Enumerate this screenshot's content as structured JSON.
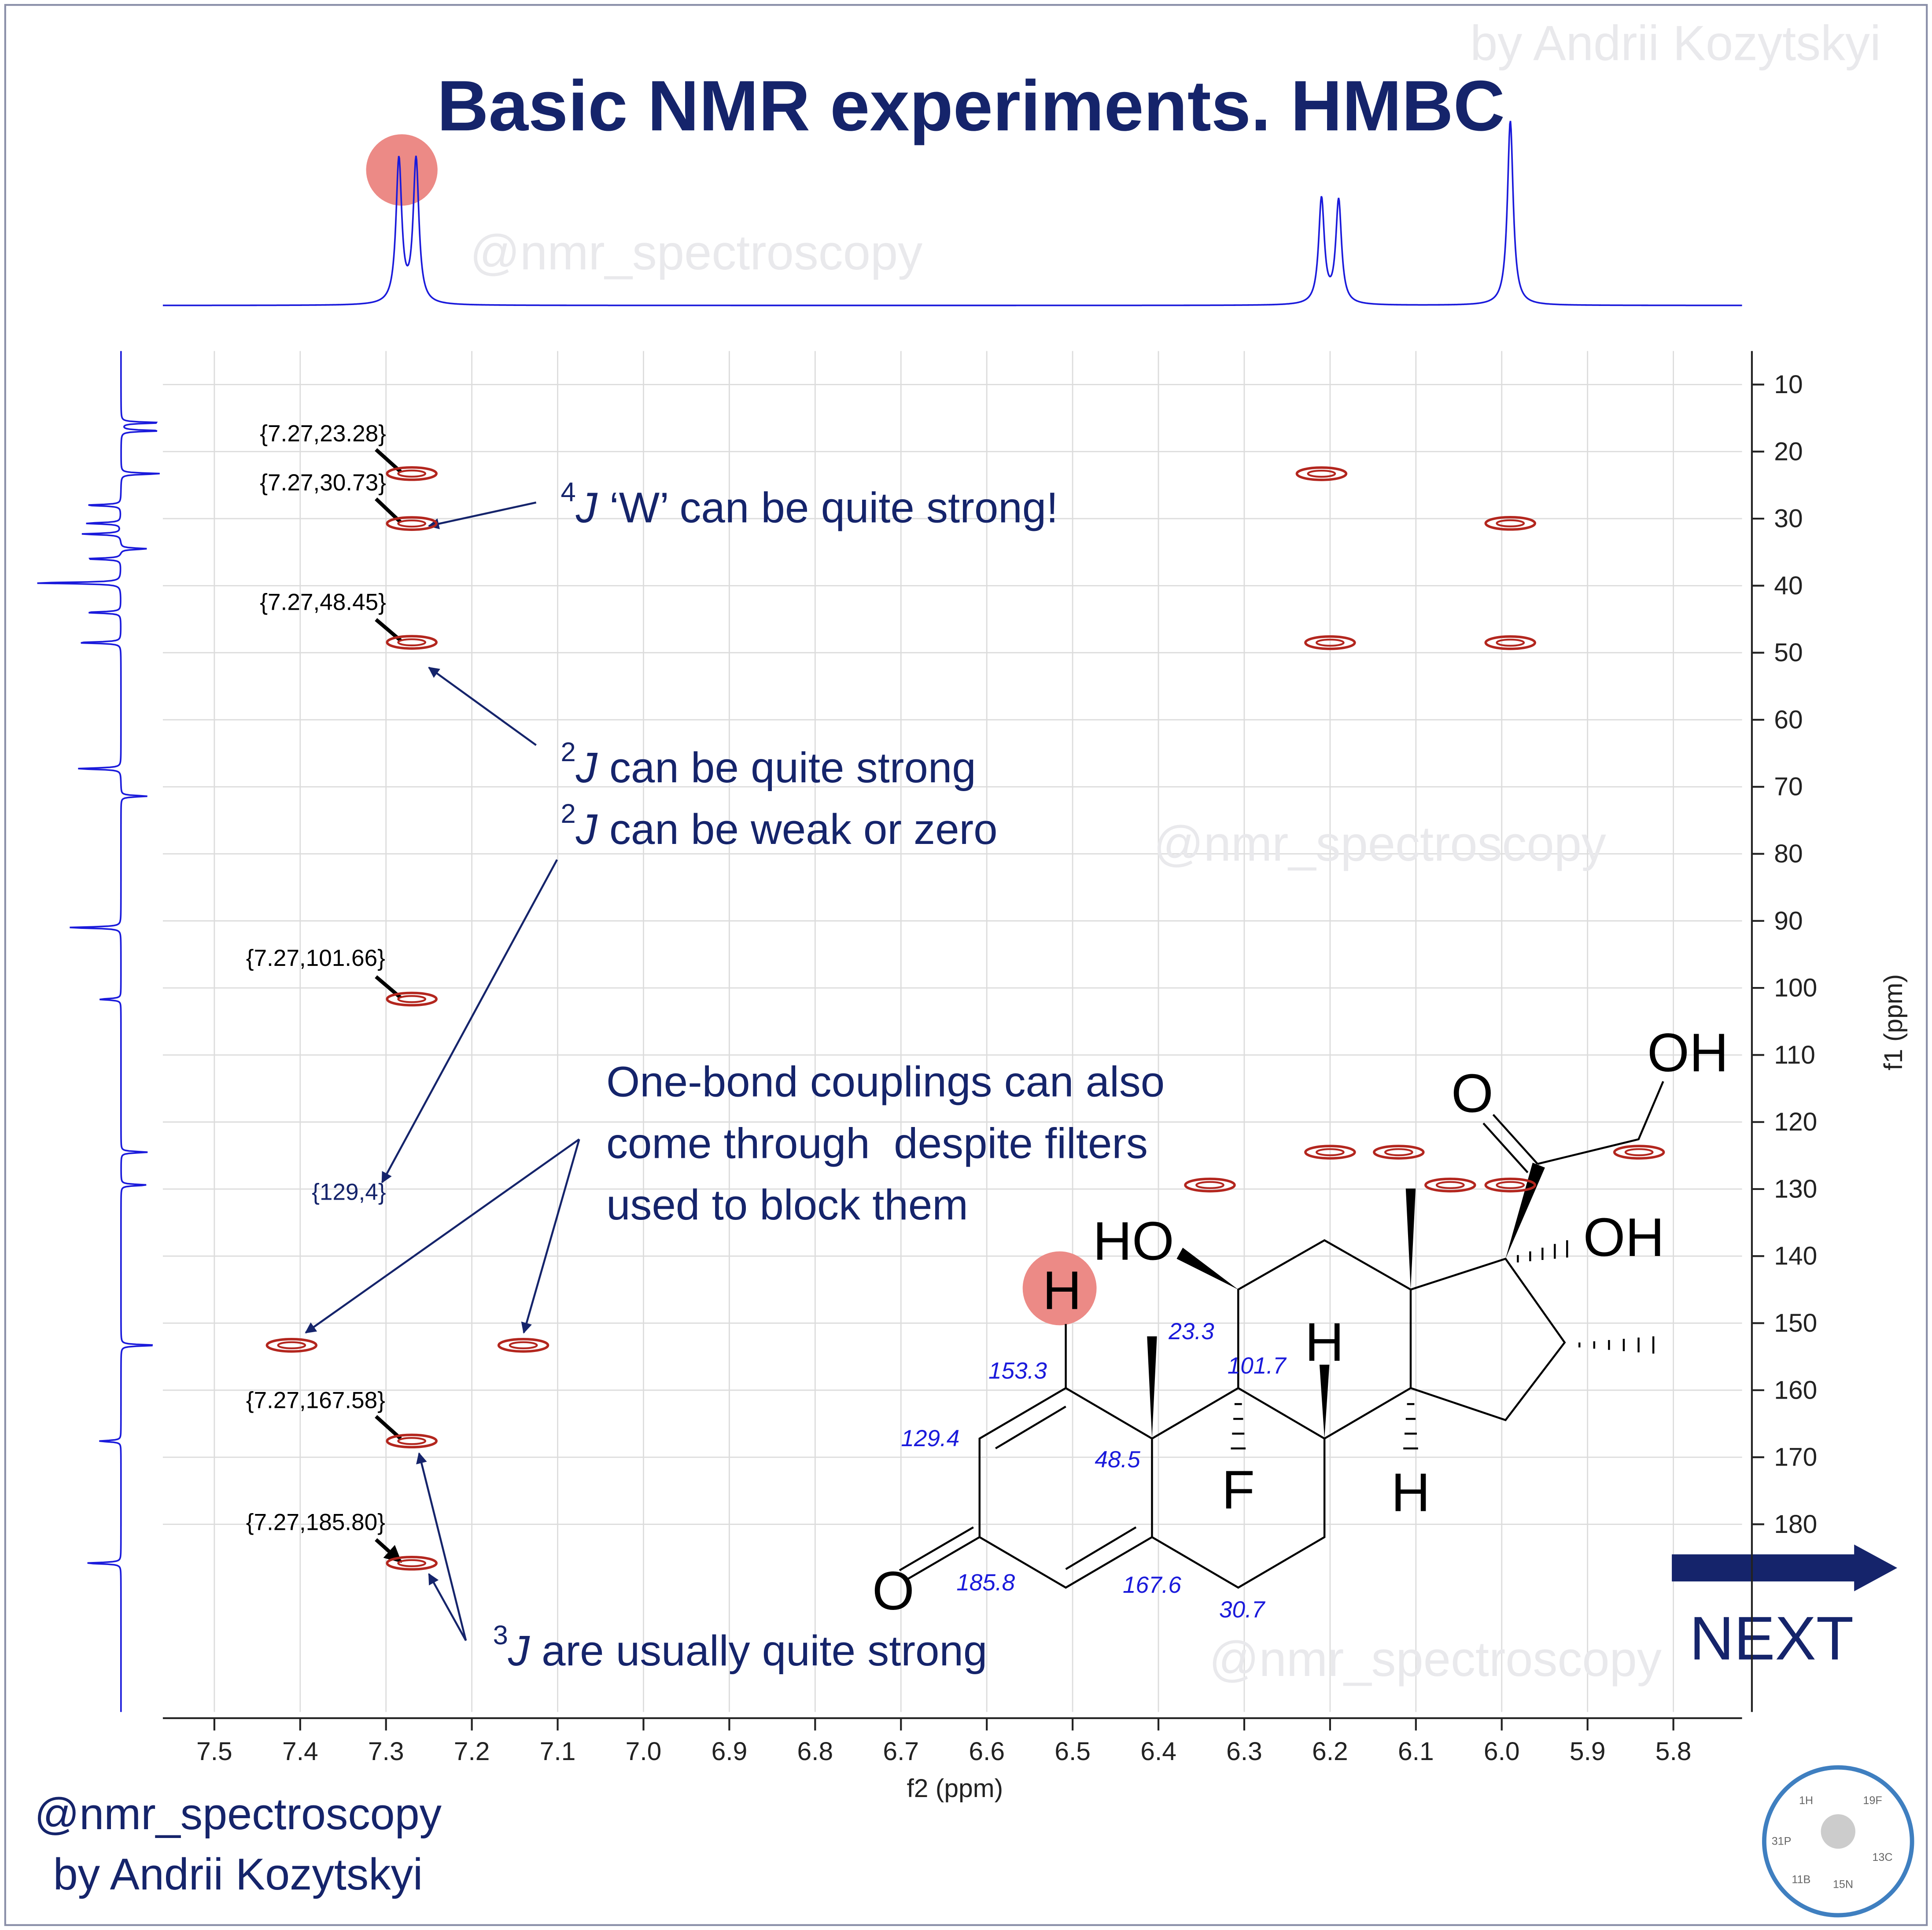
{
  "chart_data": {
    "type": "scatter",
    "title": "Basic NMR experiments. HMBC",
    "x_label": "f2 (ppm)",
    "y_label": "f1 (ppm)",
    "xlim": [
      7.56,
      5.72
    ],
    "ylim": [
      5,
      208
    ],
    "xticks": [
      7.5,
      7.4,
      7.3,
      7.2,
      7.1,
      {
        "value": 7,
        "label": "7.0"
      },
      6.9,
      6.8,
      6.7,
      6.6,
      6.5,
      6.4,
      6.3,
      6.2,
      6.1,
      {
        "value": 6,
        "label": "6.0"
      },
      5.9,
      5.8
    ],
    "yticks": [
      10,
      20,
      30,
      40,
      50,
      60,
      70,
      80,
      90,
      100,
      110,
      120,
      130,
      140,
      150,
      160,
      170,
      180
    ],
    "grid": true,
    "series": [
      {
        "color": "#b3261e",
        "x": [
          7.27,
          7.27,
          7.27,
          7.27,
          7.27,
          7.27,
          7.41,
          7.14,
          6.21,
          5.99,
          6.2,
          5.99,
          6.2,
          6.12,
          5.84,
          6.34,
          6.06,
          5.99
        ],
        "values": [
          23.28,
          30.73,
          48.45,
          101.66,
          167.58,
          185.8,
          153.3,
          153.3,
          23.3,
          30.7,
          48.5,
          48.5,
          124.5,
          124.5,
          124.5,
          129.4,
          129.4,
          129.4
        ]
      }
    ],
    "peak_labels": [
      "{7.27,23.28}",
      "{7.27,30.73}",
      "{7.27,48.45}",
      "{7.27,101.66}",
      "{7.27,167.58}",
      "{7.27,185.80}",
      "{129,4}"
    ],
    "f2_projection": {
      "color": "#1a1adb",
      "ppm": [
        7.285,
        7.265,
        6.21,
        6.19,
        5.99
      ],
      "intensity": [
        0.78,
        0.78,
        0.57,
        0.56,
        1
      ]
    },
    "f1_projection": {
      "color": "#1a1adb",
      "ppm": [
        15.7,
        16.9,
        23.3,
        28,
        30.7,
        32.3,
        34.5,
        36,
        39.6,
        44,
        48.5,
        67.3,
        71.4,
        91,
        101.7,
        124.5,
        129.4,
        153.3,
        167.6,
        185.8
      ],
      "intensity": [
        -0.45,
        -0.45,
        -0.45,
        0.4,
        0.4,
        0.45,
        -0.3,
        0.4,
        1,
        0.4,
        0.5,
        0.5,
        -0.3,
        0.6,
        0.25,
        -0.3,
        -0.3,
        -0.4,
        0.25,
        0.4
      ]
    },
    "annotations": [
      {
        "sup": "4",
        "symbol": "J",
        "text": " ‘W’ can be quite strong!"
      },
      {
        "sup": "2",
        "symbol": "J",
        "text": " can be quite strong"
      },
      {
        "sup": "2",
        "symbol": "J",
        "text": " can be weak or zero"
      },
      {
        "text": "One-bond couplings can also"
      },
      {
        "text": "come through  despite filters"
      },
      {
        "text": "used to block them"
      },
      {
        "sup": "3",
        "symbol": "J",
        "text": " are usually quite strong"
      }
    ]
  },
  "molecule": {
    "atoms": [
      "OH",
      "O",
      "HO",
      "OH",
      "H",
      "H",
      "F",
      "H",
      "O"
    ],
    "shifts": [
      153.3,
      23.3,
      101.7,
      129.4,
      48.5,
      185.8,
      167.6,
      30.7
    ]
  },
  "watermarks": [
    "@nmr_spectroscopy",
    "@nmr_spectroscopy",
    "@nmr_spectroscopy",
    "by Andrii Kozytskyi"
  ],
  "footer": [
    "@nmr_spectroscopy",
    "by Andrii Kozytskyi"
  ],
  "next_button": "NEXT",
  "logo_labels": [
    "1H",
    "19F",
    "13C",
    "11B",
    "15N",
    "31P"
  ]
}
